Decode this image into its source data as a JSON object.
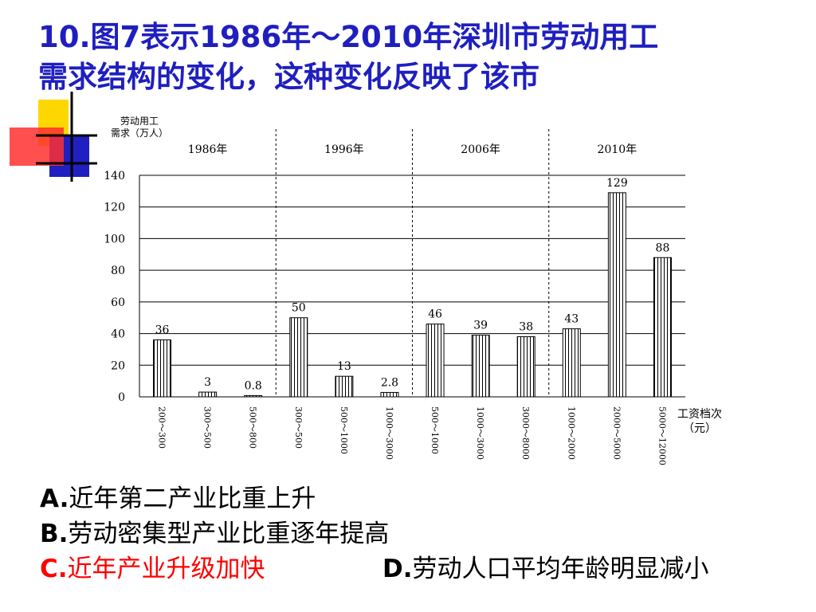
{
  "question": {
    "line1": "10.图7表示1986年～2010年深圳市劳动用工",
    "line2": "需求结构的变化，这种变化反映了该市"
  },
  "options": [
    {
      "letter": "A.",
      "text": "近年第二产业比重上升"
    },
    {
      "letter": "B.",
      "text": "劳动密集型产业比重逐年提高"
    },
    {
      "letter": "C.",
      "text": "近年产业升级加快"
    },
    {
      "letter": "D.",
      "text": "劳动人口平均年龄明显减小"
    }
  ],
  "colors": {
    "title": "#1f1fbf",
    "highlight_option": "#ff0000",
    "deco_yellow": "#ffd700",
    "deco_blue": "#2020c0",
    "deco_red": "#ff3030"
  },
  "chart_data": {
    "type": "bar",
    "ylabel_lines": [
      "劳动用工",
      "需求（万人）"
    ],
    "xlabel_lines": [
      "工资档次",
      "（元）"
    ],
    "ylim": [
      0,
      140
    ],
    "yticks": [
      0,
      20,
      40,
      60,
      80,
      100,
      120,
      140
    ],
    "grid": true,
    "groups": [
      {
        "year": "1986年",
        "bars": [
          {
            "category": "200～300",
            "value": 36,
            "label": "36"
          },
          {
            "category": "300～500",
            "value": 3,
            "label": "3"
          },
          {
            "category": "500～800",
            "value": 0.8,
            "label": "0.8"
          }
        ]
      },
      {
        "year": "1996年",
        "bars": [
          {
            "category": "300～500",
            "value": 50,
            "label": "50"
          },
          {
            "category": "500～1000",
            "value": 13,
            "label": "13"
          },
          {
            "category": "1000～3000",
            "value": 2.8,
            "label": "2.8"
          }
        ]
      },
      {
        "year": "2006年",
        "bars": [
          {
            "category": "500～1000",
            "value": 46,
            "label": "46"
          },
          {
            "category": "1000～3000",
            "value": 39,
            "label": "39"
          },
          {
            "category": "3000～8000",
            "value": 38,
            "label": "38"
          }
        ]
      },
      {
        "year": "2010年",
        "bars": [
          {
            "category": "1000～2000",
            "value": 43,
            "label": "43"
          },
          {
            "category": "2000～5000",
            "value": 129,
            "label": "129"
          },
          {
            "category": "5000～12000",
            "value": 88,
            "label": "88"
          }
        ]
      }
    ]
  }
}
